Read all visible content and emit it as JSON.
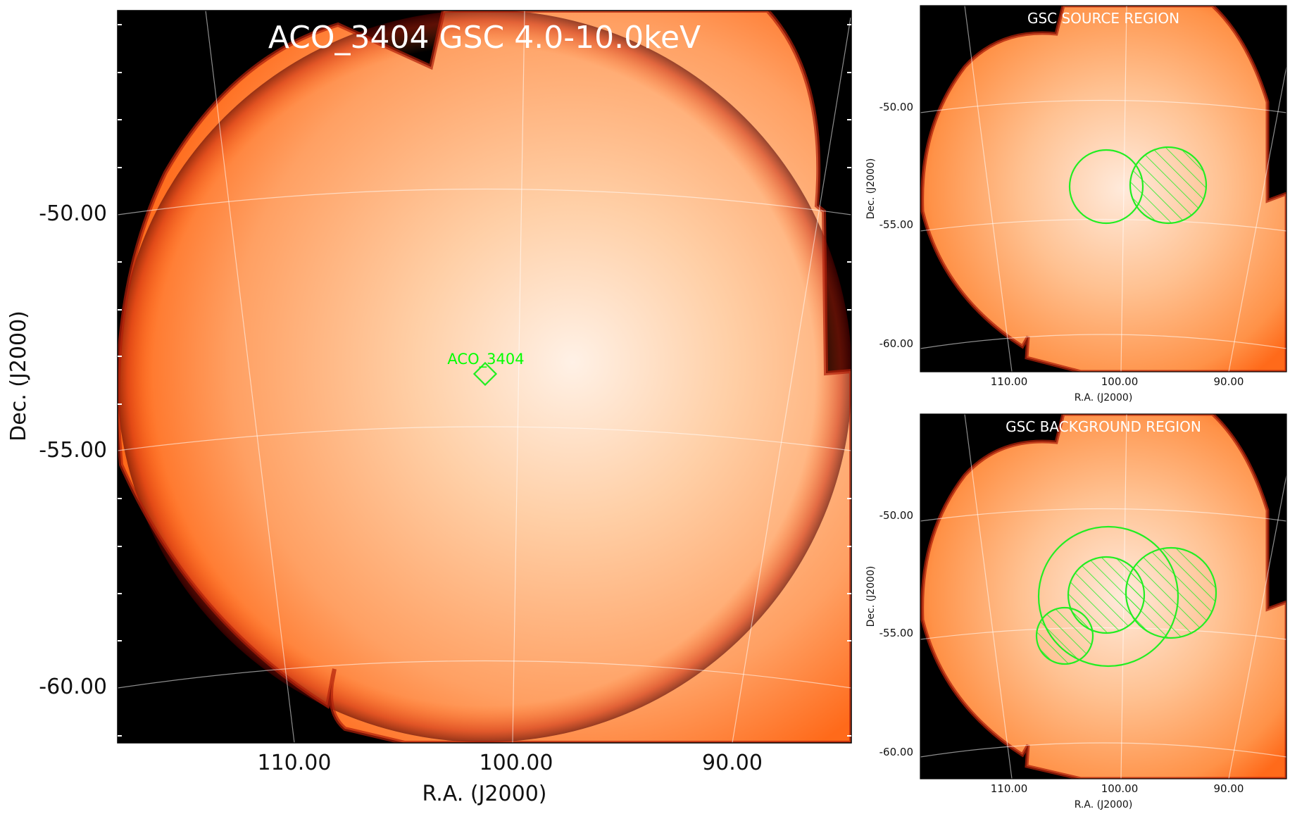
{
  "main_panel": {
    "title": "ACO_3404 GSC 4.0-10.0keV",
    "source_label": "ACO_3404",
    "ytick_labels": [
      "-50.00",
      "-55.00",
      "-60.00"
    ],
    "xtick_labels": [
      "110.00",
      "100.00",
      "90.00"
    ],
    "xlabel": "R.A. (J2000)",
    "ylabel": "Dec. (J2000)"
  },
  "source_panel": {
    "title": "GSC SOURCE REGION",
    "ytick_labels": [
      "-50.00",
      "-55.00",
      "-60.00"
    ],
    "xtick_labels": [
      "110.00",
      "100.00",
      "90.00"
    ],
    "xlabel": "R.A. (J2000)",
    "ylabel": "Dec. (J2000)"
  },
  "background_panel": {
    "title": "GSC BACKGROUND REGION",
    "ytick_labels": [
      "-50.00",
      "-55.00",
      "-60.00"
    ],
    "xtick_labels": [
      "110.00",
      "100.00",
      "90.00"
    ],
    "xlabel": "R.A. (J2000)",
    "ylabel": "Dec. (J2000)"
  },
  "colors": {
    "background": "#000000",
    "field_orange": "#ff7a2a",
    "field_light": "#ffe8d6",
    "region_green": "#22ee22"
  }
}
